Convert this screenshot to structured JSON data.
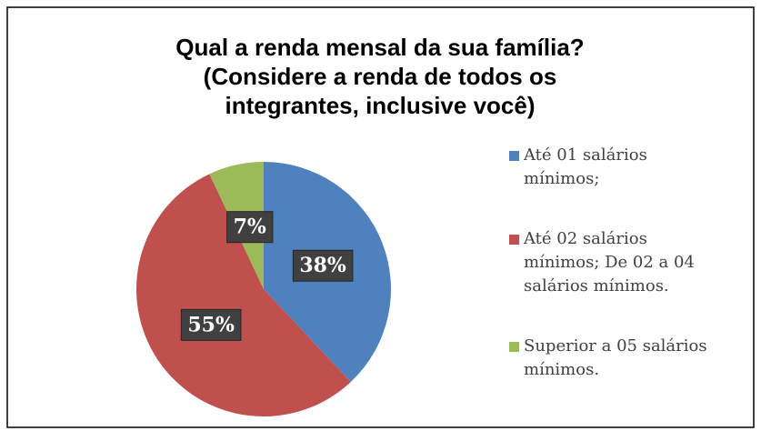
{
  "chart_data": {
    "type": "pie",
    "title": "Qual a renda mensal da sua família? (Considere a renda de todos os integrantes, inclusive você)",
    "categories": [
      "Até 01 salários mínimos;",
      "Até 02 salários mínimos; De 02 a 04 salários mínimos.",
      "Superior a 05 salários mínimos."
    ],
    "values": [
      38,
      55,
      7
    ],
    "value_labels": [
      "38%",
      "55%",
      "7%"
    ],
    "colors": [
      "#4f81bd",
      "#c0504d",
      "#9bbb59"
    ],
    "legend": "right"
  }
}
